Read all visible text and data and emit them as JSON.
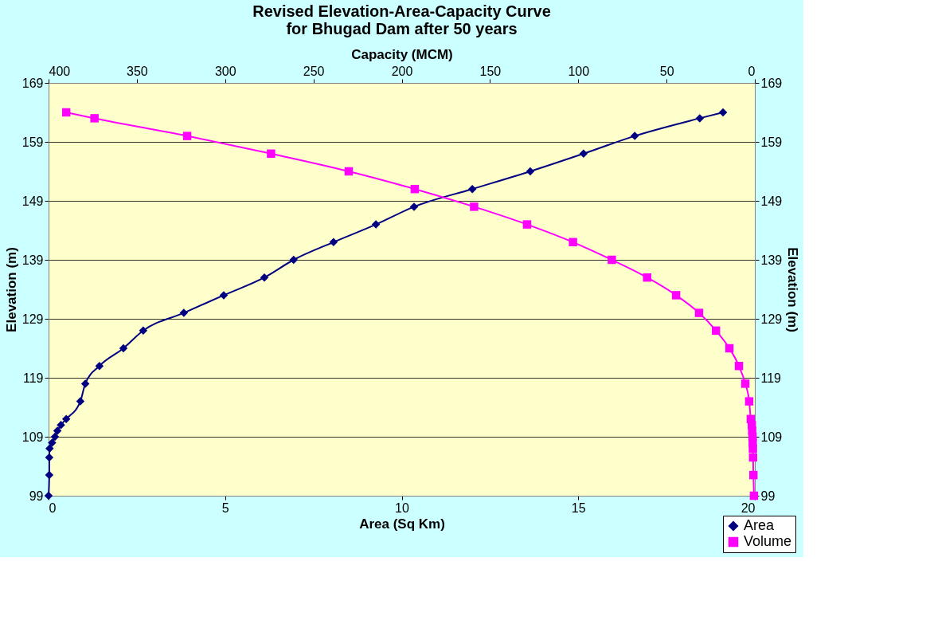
{
  "chart_data": {
    "type": "line",
    "title": "Revised Elevation-Area-Capacity Curve\nfor Bhugad Dam after 50 years",
    "xlabel": "Area (Sq Km)",
    "x2label": "Capacity (MCM)",
    "ylabel": "Elevation (m)",
    "y2label": "Elevation (m)",
    "xlim": [
      0,
      20
    ],
    "xticks": [
      0,
      5,
      10,
      15,
      20
    ],
    "x2lim": [
      400,
      0
    ],
    "x2ticks": [
      400,
      350,
      300,
      250,
      200,
      150,
      100,
      50,
      0
    ],
    "ylim": [
      99,
      169
    ],
    "yticks": [
      99,
      109,
      119,
      129,
      139,
      149,
      159,
      169
    ],
    "y2lim": [
      99,
      169
    ],
    "y2ticks": [
      99,
      109,
      119,
      129,
      139,
      149,
      159,
      169
    ],
    "grid": "y",
    "legend": "bottom right",
    "line_style": "solid",
    "series": [
      {
        "name": "Area",
        "color": "#000080",
        "marker": "diamond",
        "x": [
          0,
          0.02,
          0.02,
          0.03,
          0.1,
          0.18,
          0.25,
          0.35,
          0.5,
          0.9,
          1.04,
          1.44,
          2.12,
          2.68,
          3.83,
          4.96,
          6.11,
          6.94,
          8.07,
          9.27,
          10.35,
          12.0,
          13.64,
          15.15,
          16.6,
          18.44,
          19.1
        ],
        "values": [
          99,
          102.5,
          105.5,
          107,
          108,
          109,
          110,
          111,
          112,
          115,
          118,
          121,
          124,
          127,
          130,
          133,
          136,
          139,
          142,
          145,
          148,
          151,
          154,
          157,
          160,
          163,
          164
        ]
      },
      {
        "name": "Volume",
        "color": "#ff00ff",
        "marker": "square",
        "axis": "x2",
        "x": [
          0.5,
          0.8,
          1.0,
          1.1,
          1.2,
          1.3,
          1.5,
          1.7,
          2.3,
          3.2,
          5.4,
          9,
          14.4,
          22,
          31.6,
          44.6,
          61,
          81,
          103,
          129,
          159,
          192.6,
          230,
          274,
          321.5,
          374,
          390
        ],
        "values": [
          99,
          102.5,
          105.5,
          107,
          108,
          109,
          110,
          111,
          112,
          115,
          118,
          121,
          124,
          127,
          130,
          133,
          136,
          139,
          142,
          145,
          148,
          151,
          154,
          157,
          160,
          163,
          164
        ]
      }
    ]
  }
}
